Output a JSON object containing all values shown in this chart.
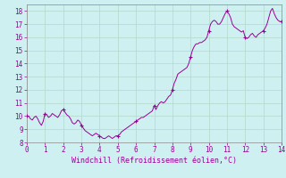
{
  "xlabel": "Windchill (Refroidissement éolien,°C)",
  "xlim": [
    0,
    14
  ],
  "ylim": [
    8,
    18.5
  ],
  "xticks": [
    0,
    1,
    2,
    3,
    4,
    5,
    6,
    7,
    8,
    9,
    10,
    11,
    12,
    13,
    14
  ],
  "yticks": [
    8,
    9,
    10,
    11,
    12,
    13,
    14,
    15,
    16,
    17,
    18
  ],
  "line_color": "#990099",
  "marker_color": "#990099",
  "bg_color": "#cff0f0",
  "grid_color": "#b0d8cc",
  "x": [
    0.0,
    0.1,
    0.2,
    0.3,
    0.4,
    0.5,
    0.6,
    0.7,
    0.8,
    0.9,
    1.0,
    1.1,
    1.2,
    1.3,
    1.4,
    1.5,
    1.6,
    1.7,
    1.8,
    1.9,
    2.0,
    2.1,
    2.2,
    2.3,
    2.4,
    2.5,
    2.6,
    2.7,
    2.8,
    2.9,
    3.0,
    3.1,
    3.2,
    3.3,
    3.4,
    3.5,
    3.6,
    3.7,
    3.8,
    3.9,
    4.0,
    4.1,
    4.2,
    4.3,
    4.4,
    4.5,
    4.6,
    4.7,
    4.8,
    4.9,
    5.0,
    5.1,
    5.2,
    5.3,
    5.4,
    5.5,
    5.6,
    5.7,
    5.8,
    5.9,
    6.0,
    6.1,
    6.2,
    6.3,
    6.4,
    6.5,
    6.6,
    6.7,
    6.8,
    6.9,
    7.0,
    7.1,
    7.2,
    7.3,
    7.4,
    7.5,
    7.6,
    7.7,
    7.8,
    7.9,
    8.0,
    8.1,
    8.2,
    8.3,
    8.4,
    8.5,
    8.6,
    8.7,
    8.8,
    8.9,
    9.0,
    9.1,
    9.2,
    9.3,
    9.4,
    9.5,
    9.6,
    9.7,
    9.8,
    9.9,
    10.0,
    10.1,
    10.2,
    10.3,
    10.4,
    10.5,
    10.6,
    10.7,
    10.8,
    10.9,
    11.0,
    11.1,
    11.2,
    11.3,
    11.4,
    11.5,
    11.6,
    11.7,
    11.8,
    11.9,
    12.0,
    12.1,
    12.2,
    12.3,
    12.4,
    12.5,
    12.6,
    12.7,
    12.8,
    12.9,
    13.0,
    13.1,
    13.2,
    13.3,
    13.4,
    13.5,
    13.6,
    13.7,
    13.8,
    13.9,
    14.0
  ],
  "y": [
    10.0,
    10.0,
    9.8,
    9.7,
    9.9,
    10.0,
    9.8,
    9.5,
    9.3,
    9.6,
    10.2,
    10.1,
    9.9,
    10.0,
    10.2,
    10.1,
    10.0,
    9.9,
    10.1,
    10.4,
    10.5,
    10.3,
    10.1,
    10.0,
    9.8,
    9.5,
    9.4,
    9.5,
    9.7,
    9.6,
    9.3,
    9.1,
    8.9,
    8.8,
    8.7,
    8.6,
    8.5,
    8.6,
    8.7,
    8.6,
    8.5,
    8.4,
    8.3,
    8.3,
    8.4,
    8.5,
    8.4,
    8.3,
    8.4,
    8.5,
    8.5,
    8.6,
    8.8,
    8.9,
    9.0,
    9.1,
    9.2,
    9.3,
    9.4,
    9.5,
    9.6,
    9.7,
    9.8,
    9.9,
    9.9,
    10.0,
    10.1,
    10.2,
    10.3,
    10.4,
    10.8,
    10.5,
    10.8,
    11.0,
    11.1,
    11.0,
    11.1,
    11.3,
    11.5,
    11.6,
    12.0,
    12.5,
    12.8,
    13.2,
    13.3,
    13.4,
    13.5,
    13.6,
    13.7,
    14.0,
    14.5,
    15.0,
    15.3,
    15.5,
    15.5,
    15.6,
    15.6,
    15.7,
    15.8,
    16.0,
    16.5,
    17.0,
    17.2,
    17.3,
    17.2,
    17.0,
    17.0,
    17.2,
    17.5,
    17.8,
    18.0,
    17.8,
    17.5,
    17.0,
    16.8,
    16.7,
    16.6,
    16.5,
    16.4,
    16.5,
    16.0,
    15.9,
    16.0,
    16.2,
    16.3,
    16.1,
    16.0,
    16.2,
    16.3,
    16.4,
    16.5,
    16.7,
    17.0,
    17.5,
    18.0,
    18.2,
    17.8,
    17.5,
    17.3,
    17.2,
    17.2
  ],
  "marker_x": [
    0.0,
    1.0,
    2.0,
    3.0,
    4.0,
    5.0,
    6.0,
    7.0,
    8.0,
    9.0,
    10.0,
    11.0,
    12.0,
    13.0,
    14.0
  ],
  "marker_y": [
    10.0,
    10.2,
    10.5,
    9.3,
    8.5,
    8.5,
    9.6,
    10.8,
    12.0,
    14.5,
    16.5,
    18.0,
    16.0,
    16.5,
    17.2
  ]
}
